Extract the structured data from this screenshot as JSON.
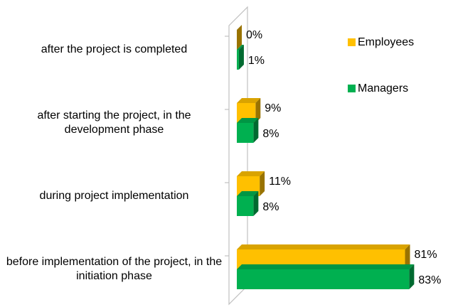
{
  "chart_data": {
    "type": "bar",
    "orientation": "horizontal",
    "categories": [
      "after the project is completed",
      "after starting the project, in the development phase",
      "during project implementation",
      "before implementation of the project, in the initiation phase"
    ],
    "series": [
      {
        "name": "Employees",
        "color": "#ffc000",
        "values": [
          0,
          9,
          11,
          81
        ],
        "value_labels": [
          "0%",
          "9%",
          "11%",
          "81%"
        ]
      },
      {
        "name": "Managers",
        "color": "#00b050",
        "values": [
          1,
          8,
          8,
          83
        ],
        "value_labels": [
          "1%",
          "8%",
          "8%",
          "83%"
        ]
      }
    ],
    "legend": "right"
  }
}
